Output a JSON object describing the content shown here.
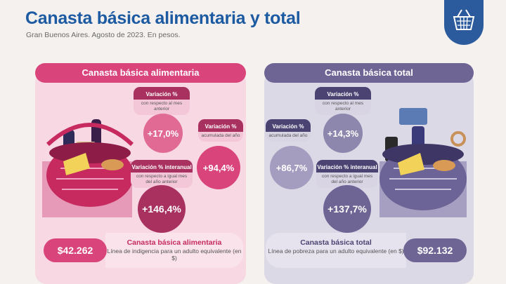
{
  "header": {
    "title": "Canasta básica alimentaria y total",
    "subtitle": "Gran Buenos Aires. Agosto de 2023. En pesos."
  },
  "colors": {
    "title": "#1c5aa2",
    "cba_main": "#d9457b",
    "cba_light": "#f4c7d8",
    "cba_dark": "#a8315f",
    "cbt_main": "#6e6595",
    "cbt_light": "#d8d4e4",
    "cbt_dark": "#4b4473"
  },
  "panels": {
    "cba": {
      "heading": "Canasta básica alimentaria",
      "mensual": {
        "label": "Variación %",
        "sub": "con respecto al mes anterior",
        "value": "+17,0%"
      },
      "acumulada": {
        "label": "Variación %",
        "sub": "acumulada del año",
        "value": "+94,4%"
      },
      "interanual": {
        "label": "Variación % interanual",
        "sub": "con respecto a igual mes del año anterior",
        "value": "+146,4%"
      },
      "amount": "$42.262",
      "desc_title": "Canasta básica alimentaria",
      "desc_text": "Línea de indigencia para un adulto equivalente (en $)"
    },
    "cbt": {
      "heading": "Canasta básica total",
      "mensual": {
        "label": "Variación %",
        "sub": "con respecto al mes anterior",
        "value": "+14,3%"
      },
      "acumulada": {
        "label": "Variación %",
        "sub": "acumulada del año",
        "value": "+86,7%"
      },
      "interanual": {
        "label": "Variación % interanual",
        "sub": "con respecto a igual mes del año anterior",
        "value": "+137,7%"
      },
      "amount": "$92.132",
      "desc_title": "Canasta básica total",
      "desc_text": "Línea de pobreza para un adulto equivalente (en $)"
    }
  },
  "chart_data": {
    "type": "table",
    "title": "Canasta básica alimentaria y total",
    "subtitle": "Gran Buenos Aires. Agosto de 2023. En pesos.",
    "columns": [
      "Canasta básica alimentaria",
      "Canasta básica total"
    ],
    "rows": [
      {
        "metric": "Variación % con respecto al mes anterior",
        "values": [
          17.0,
          14.3
        ]
      },
      {
        "metric": "Variación % acumulada del año",
        "values": [
          94.4,
          86.7
        ]
      },
      {
        "metric": "Variación % interanual",
        "values": [
          146.4,
          137.7
        ]
      },
      {
        "metric": "Valor (en $)",
        "values": [
          42262,
          92132
        ]
      }
    ]
  }
}
